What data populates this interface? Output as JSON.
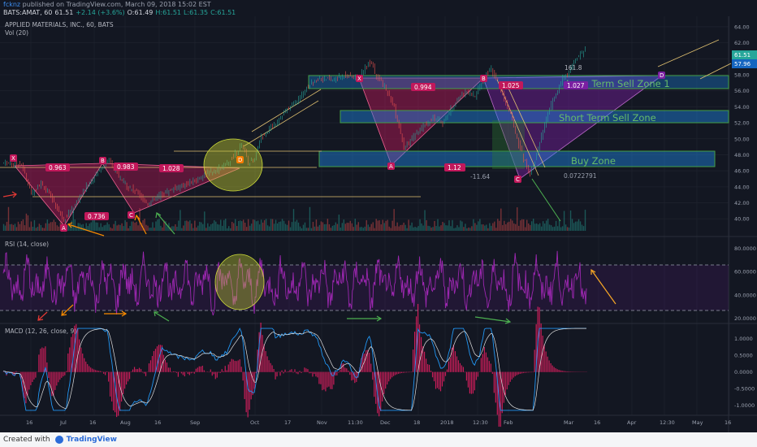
{
  "header": {
    "author": "fcknz",
    "published": "published on TradingView.com, March 09, 2018 15:02 EST",
    "symbol_line": "BATS:AMAT, 60",
    "last": "61.51",
    "change": "+2.14 (+3.6%)",
    "o": "O:61.49",
    "h": "H:61.51",
    "l": "L:61.35",
    "c": "C:61.51"
  },
  "chart_data": [
    {
      "type": "line",
      "pane": "price",
      "title": "APPLIED MATERIALS, INC., 60, BATS",
      "subtitle": "Vol (20)",
      "y_axis_ticks": [
        40,
        42,
        44,
        46,
        48,
        50,
        52,
        54,
        56,
        58,
        60,
        62,
        64
      ],
      "y_axis_tick_labels": [
        "40.00",
        "42.00",
        "44.00",
        "46.00",
        "48.00",
        "50.00",
        "52.00",
        "54.00",
        "56.00",
        "58.00",
        "60.00",
        "62.00",
        "64.00"
      ],
      "ylim": [
        38.5,
        64.5
      ],
      "last_price_label": "61.51",
      "second_price_label": "57.96",
      "x_axis_labels": [
        "16",
        "Jul",
        "16",
        "Aug",
        "16",
        "Sep",
        "Oct",
        "17",
        "Nov",
        "11:30",
        "Dec",
        "18",
        "2018",
        "12:30",
        "Feb",
        "Mar",
        "16",
        "Apr",
        "12:30",
        "May",
        "16"
      ],
      "price_path": [
        [
          0,
          47.0
        ],
        [
          0.03,
          46.8
        ],
        [
          0.045,
          43.2
        ],
        [
          0.06,
          44.5
        ],
        [
          0.075,
          42.8
        ],
        [
          0.095,
          39.9
        ],
        [
          0.11,
          41.5
        ],
        [
          0.13,
          44.0
        ],
        [
          0.15,
          46.2
        ],
        [
          0.165,
          47.4
        ],
        [
          0.18,
          45.2
        ],
        [
          0.195,
          44.0
        ],
        [
          0.21,
          43.2
        ],
        [
          0.225,
          41.8
        ],
        [
          0.24,
          42.8
        ],
        [
          0.26,
          43.6
        ],
        [
          0.28,
          44.2
        ],
        [
          0.3,
          44.8
        ],
        [
          0.31,
          45.5
        ],
        [
          0.33,
          46.0
        ],
        [
          0.35,
          47.0
        ],
        [
          0.36,
          48.2
        ],
        [
          0.37,
          49.2
        ],
        [
          0.375,
          48.5
        ],
        [
          0.38,
          47.0
        ],
        [
          0.39,
          47.5
        ],
        [
          0.4,
          50.3
        ],
        [
          0.42,
          51.8
        ],
        [
          0.44,
          53.6
        ],
        [
          0.46,
          55.3
        ],
        [
          0.475,
          56.8
        ],
        [
          0.49,
          57.6
        ],
        [
          0.51,
          57.3
        ],
        [
          0.53,
          58.0
        ],
        [
          0.55,
          57.5
        ],
        [
          0.56,
          59.0
        ],
        [
          0.57,
          59.6
        ],
        [
          0.575,
          58.2
        ],
        [
          0.59,
          56.5
        ],
        [
          0.605,
          54.0
        ],
        [
          0.62,
          48.8
        ],
        [
          0.635,
          50.2
        ],
        [
          0.65,
          51.6
        ],
        [
          0.665,
          52.6
        ],
        [
          0.68,
          52.0
        ],
        [
          0.7,
          54.6
        ],
        [
          0.715,
          55.9
        ],
        [
          0.73,
          55.4
        ],
        [
          0.745,
          57.8
        ],
        [
          0.755,
          58.7
        ],
        [
          0.765,
          57.2
        ],
        [
          0.775,
          55.0
        ],
        [
          0.785,
          53.2
        ],
        [
          0.795,
          50.0
        ],
        [
          0.805,
          47.6
        ],
        [
          0.815,
          45.7
        ],
        [
          0.825,
          48.0
        ],
        [
          0.835,
          51.0
        ],
        [
          0.845,
          53.8
        ],
        [
          0.855,
          55.5
        ],
        [
          0.865,
          57.5
        ],
        [
          0.875,
          58.4
        ],
        [
          0.885,
          59.8
        ],
        [
          0.895,
          60.8
        ],
        [
          0.9,
          61.51
        ]
      ],
      "harmonic_patterns": [
        {
          "points": [
            "X",
            "A",
            "B",
            "C"
          ],
          "ratios": [
            "0.963",
            "0.736",
            "0.983",
            "1.028"
          ]
        },
        {
          "points": [
            "X",
            "A",
            "B",
            "C",
            "D"
          ],
          "ratios": [
            "0.994",
            "1.025",
            "1.12",
            "1.027",
            "161.8"
          ]
        }
      ],
      "zones": [
        {
          "label": "Long Term Sell Zone 1",
          "low": 57.3,
          "high": 59.0
        },
        {
          "label": "Short Term Sell Zone",
          "low": 52.7,
          "high": 54.2
        },
        {
          "label": "Buy Zone",
          "low": 47.4,
          "high": 49.0
        }
      ],
      "annotations": [
        "-11.64",
        "0.0722791"
      ]
    },
    {
      "type": "line",
      "pane": "rsi",
      "title": "RSI (14, close)",
      "y_axis_tick_labels": [
        "20.0000",
        "40.0000",
        "60.0000",
        "80.0000"
      ],
      "ylim": [
        17,
        88
      ],
      "bands": [
        30,
        70
      ]
    },
    {
      "type": "line",
      "pane": "macd",
      "title": "MACD (12, 26, close, 9)",
      "y_axis_tick_labels": [
        "-1.0000",
        "-0.5000",
        "0.0000",
        "0.5000",
        "1.0000"
      ],
      "ylim": [
        -1.25,
        1.35
      ]
    }
  ],
  "footer": {
    "created": "Created with",
    "brand": "TradingView"
  },
  "colors": {
    "bg": "#131722",
    "candle_up": "#26a69a",
    "candle_down": "#ef5350",
    "rsi": "#9c27b0",
    "pattern_fill": "#c2185b"
  }
}
